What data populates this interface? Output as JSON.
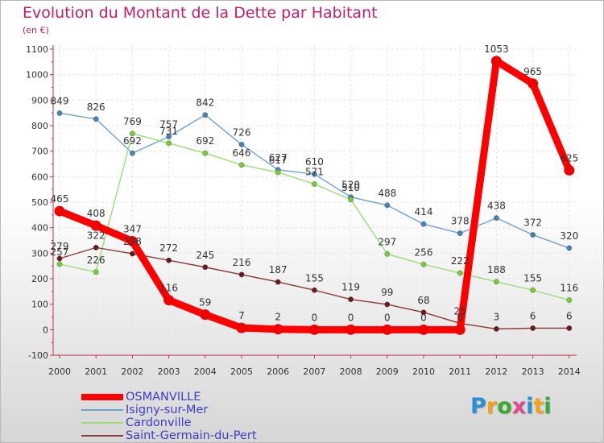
{
  "title": "Evolution du Montant de la Dette par Habitant",
  "unit": "(en €)",
  "brand": {
    "text": "Proxiti",
    "colors": [
      "#2b8fd6",
      "#f6a21b",
      "#3aa935",
      "#e04b8f",
      "#2b8fd6",
      "#f6a21b",
      "#3aa935"
    ]
  },
  "chart_data": {
    "type": "line",
    "x": [
      "2000",
      "2001",
      "2002",
      "2003",
      "2004",
      "2005",
      "2006",
      "2007",
      "2008",
      "2009",
      "2010",
      "2011",
      "2012",
      "2013",
      "2014"
    ],
    "ylim": [
      -100,
      1100
    ],
    "yticks": [
      -100,
      0,
      100,
      200,
      300,
      400,
      500,
      600,
      700,
      800,
      900,
      1000,
      1100
    ],
    "grid": true,
    "legend": "bottom-left",
    "series": [
      {
        "name": "OSMANVILLE",
        "color": "#ff0000",
        "point_color": "#ee0000",
        "values": [
          465,
          408,
          347,
          116,
          59,
          7,
          2,
          0,
          0,
          0,
          0,
          0,
          1053,
          965,
          625
        ]
      },
      {
        "name": "Isigny-sur-Mer",
        "color": "#6fa0d2",
        "point_color": "#4682b4",
        "values": [
          849,
          826,
          692,
          757,
          842,
          726,
          627,
          610,
          520,
          488,
          414,
          378,
          438,
          372,
          320
        ]
      },
      {
        "name": "Cardonville",
        "color": "#99dd77",
        "point_color": "#77cc33",
        "values": [
          257,
          226,
          769,
          731,
          692,
          646,
          617,
          571,
          510,
          297,
          256,
          222,
          188,
          155,
          116
        ]
      },
      {
        "name": "Saint-Germain-du-Pert",
        "color": "#8b3a3a",
        "point_color": "#6b1a1a",
        "values": [
          279,
          322,
          298,
          272,
          245,
          216,
          187,
          155,
          119,
          99,
          68,
          25,
          3,
          6,
          6
        ]
      }
    ]
  }
}
